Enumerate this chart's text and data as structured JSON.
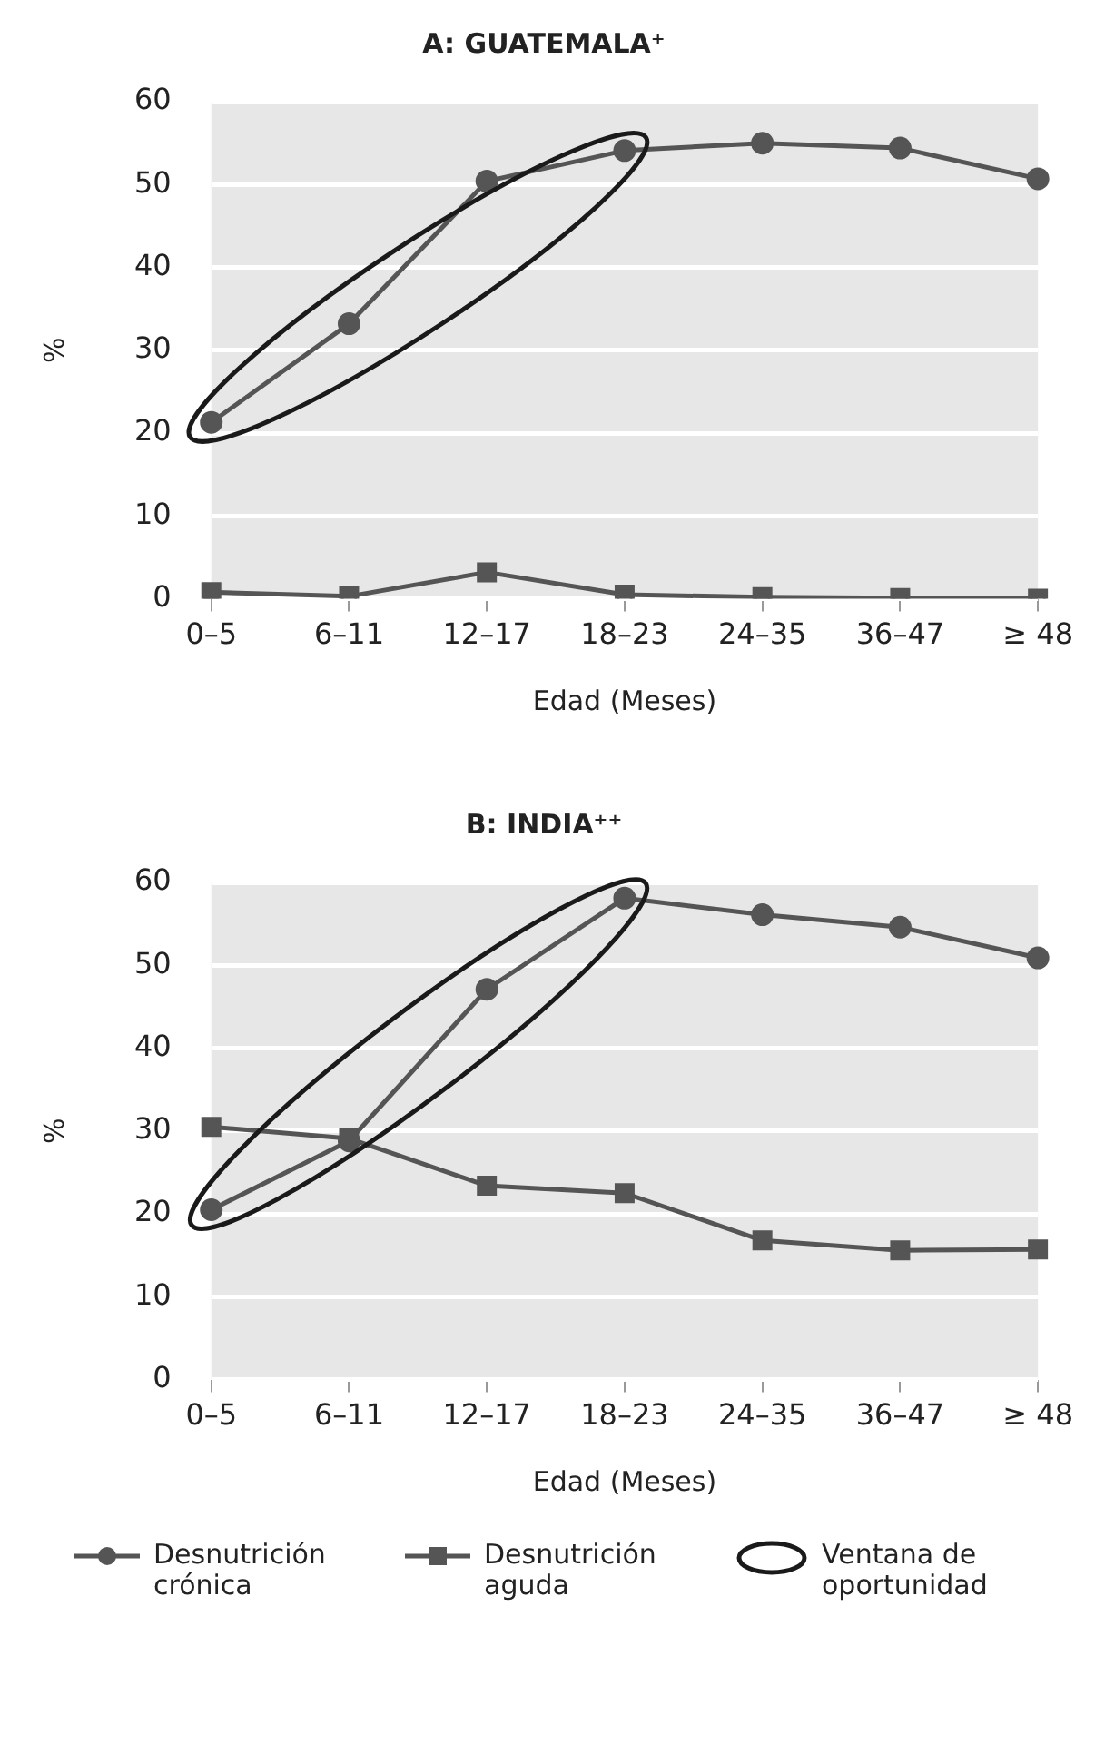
{
  "chart_data": [
    {
      "type": "line",
      "title": "A: GUATEMALA⁺",
      "xlabel": "Edad (Meses)",
      "ylabel": "%",
      "categories": [
        "0–5",
        "6–11",
        "12–17",
        "18–23",
        "24–35",
        "36–47",
        "≥ 48"
      ],
      "series": [
        {
          "color": "#555555",
          "marker": "circle",
          "values": [
            21.3,
            33.2,
            50.4,
            54.1,
            55.0,
            54.4,
            50.7
          ]
        },
        {
          "color": "#555555",
          "marker": "square",
          "values": [
            0.8,
            0.3,
            3.2,
            0.5,
            0.2,
            0.1,
            0
          ]
        }
      ],
      "ylim": [
        0,
        60
      ],
      "yticks": [
        0,
        10,
        20,
        30,
        40,
        50,
        60
      ],
      "grid": "y",
      "legend": false
    },
    {
      "type": "line",
      "title": "B: INDIA⁺⁺",
      "xlabel": "Edad (Meses)",
      "ylabel": "%",
      "categories": [
        "0–5",
        "6–11",
        "12–17",
        "18–23",
        "24–35",
        "36–47",
        "≥ 48"
      ],
      "series": [
        {
          "name": "Desnutrición crónica",
          "color": "#555555",
          "marker": "circle",
          "values": [
            20.5,
            28.8,
            47.1,
            58.1,
            56.1,
            54.6,
            50.9
          ]
        },
        {
          "name": "Desnutrición aguda",
          "color": "#555555",
          "marker": "square",
          "values": [
            30.5,
            29.1,
            23.4,
            22.5,
            16.8,
            15.6,
            15.7
          ]
        }
      ],
      "ylim": [
        0,
        60
      ],
      "yticks": [
        0,
        10,
        20,
        30,
        40,
        50,
        60
      ],
      "grid": "y",
      "legend": "bottom",
      "annotations": [
        "Ventana de oportunidad"
      ]
    }
  ]
}
